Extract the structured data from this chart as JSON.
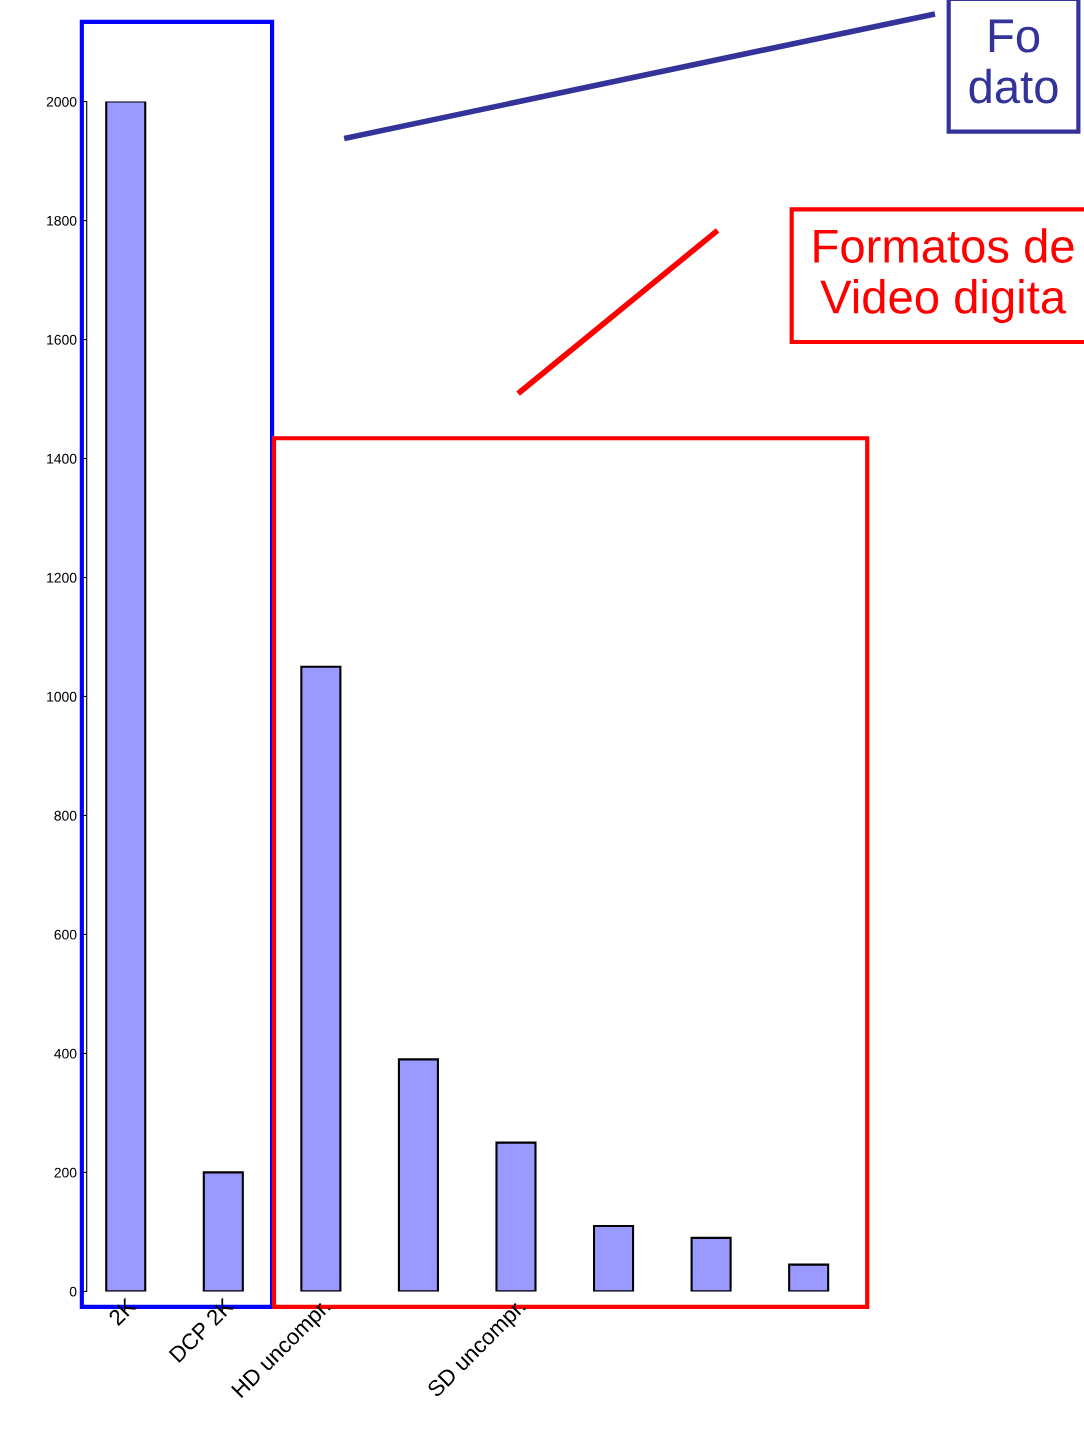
{
  "chart_data": {
    "type": "bar",
    "categories": [
      "2K",
      "DCP 2K",
      "HD uncompr.",
      null,
      "SD uncompr.",
      null,
      null,
      null
    ],
    "values": [
      2000,
      200,
      1050,
      390,
      250,
      110,
      90,
      45
    ],
    "color": "#9999ff",
    "ylim": [
      0,
      2000
    ],
    "yticks": [
      0,
      200,
      400,
      600,
      800,
      1000,
      1200,
      1400,
      1600,
      1800,
      2000
    ],
    "grid": false,
    "annotations": [
      "Fo\ndato",
      "Formatos de\nVideo digita"
    ]
  }
}
